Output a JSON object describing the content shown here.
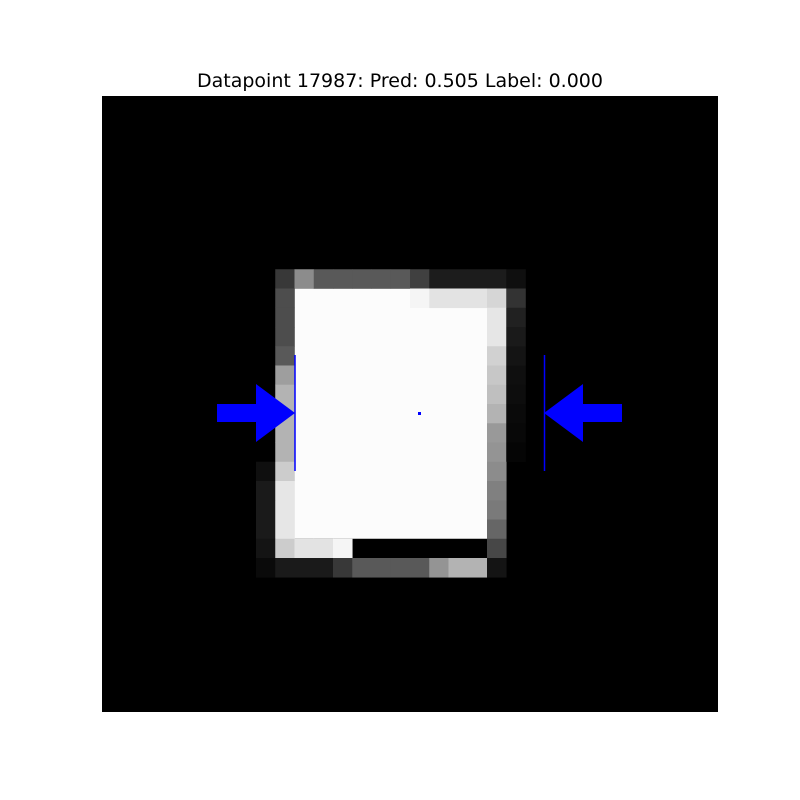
{
  "title": "Datapoint 17987: Pred: 0.505 Label: 0.000",
  "image": {
    "grid_size": 32,
    "background": "#000000",
    "pixels": [
      {
        "col": 9,
        "row": 9,
        "gray": 0.22
      },
      {
        "col": 10,
        "row": 9,
        "gray": 0.55
      },
      {
        "col": 11,
        "row": 9,
        "gray": 0.35
      },
      {
        "col": 12,
        "row": 9,
        "gray": 0.35
      },
      {
        "col": 13,
        "row": 9,
        "gray": 0.35
      },
      {
        "col": 14,
        "row": 9,
        "gray": 0.35
      },
      {
        "col": 15,
        "row": 9,
        "gray": 0.35
      },
      {
        "col": 16,
        "row": 9,
        "gray": 0.25
      },
      {
        "col": 17,
        "row": 9,
        "gray": 0.11
      },
      {
        "col": 18,
        "row": 9,
        "gray": 0.11
      },
      {
        "col": 19,
        "row": 9,
        "gray": 0.11
      },
      {
        "col": 20,
        "row": 9,
        "gray": 0.11
      },
      {
        "col": 21,
        "row": 9,
        "gray": 0.06
      },
      {
        "col": 9,
        "row": 10,
        "gray": 0.3
      },
      {
        "col": 16,
        "row": 10,
        "gray": 0.96
      },
      {
        "col": 17,
        "row": 10,
        "gray": 0.89
      },
      {
        "col": 18,
        "row": 10,
        "gray": 0.89
      },
      {
        "col": 19,
        "row": 10,
        "gray": 0.89
      },
      {
        "col": 20,
        "row": 10,
        "gray": 0.84
      },
      {
        "col": 21,
        "row": 10,
        "gray": 0.2
      },
      {
        "col": 9,
        "row": 11,
        "gray": 0.3
      },
      {
        "col": 20,
        "row": 11,
        "gray": 0.9
      },
      {
        "col": 21,
        "row": 11,
        "gray": 0.13
      },
      {
        "col": 9,
        "row": 12,
        "gray": 0.3
      },
      {
        "col": 20,
        "row": 12,
        "gray": 0.9
      },
      {
        "col": 21,
        "row": 12,
        "gray": 0.1
      },
      {
        "col": 9,
        "row": 13,
        "gray": 0.35
      },
      {
        "col": 20,
        "row": 13,
        "gray": 0.82
      },
      {
        "col": 21,
        "row": 13,
        "gray": 0.08
      },
      {
        "col": 9,
        "row": 14,
        "gray": 0.62
      },
      {
        "col": 20,
        "row": 14,
        "gray": 0.78
      },
      {
        "col": 21,
        "row": 14,
        "gray": 0.06
      },
      {
        "col": 9,
        "row": 15,
        "gray": 0.7
      },
      {
        "col": 20,
        "row": 15,
        "gray": 0.75
      },
      {
        "col": 21,
        "row": 15,
        "gray": 0.05
      },
      {
        "col": 9,
        "row": 16,
        "gray": 0.7
      },
      {
        "col": 20,
        "row": 16,
        "gray": 0.7
      },
      {
        "col": 21,
        "row": 16,
        "gray": 0.04
      },
      {
        "col": 9,
        "row": 17,
        "gray": 0.7
      },
      {
        "col": 20,
        "row": 17,
        "gray": 0.6
      },
      {
        "col": 21,
        "row": 17,
        "gray": 0.03
      },
      {
        "col": 9,
        "row": 18,
        "gray": 0.7
      },
      {
        "col": 20,
        "row": 18,
        "gray": 0.58
      },
      {
        "col": 21,
        "row": 18,
        "gray": 0.02
      },
      {
        "col": 8,
        "row": 19,
        "gray": 0.06
      },
      {
        "col": 9,
        "row": 19,
        "gray": 0.8
      },
      {
        "col": 20,
        "row": 19,
        "gray": 0.55
      },
      {
        "col": 8,
        "row": 20,
        "gray": 0.1
      },
      {
        "col": 9,
        "row": 20,
        "gray": 0.9
      },
      {
        "col": 20,
        "row": 20,
        "gray": 0.5
      },
      {
        "col": 8,
        "row": 21,
        "gray": 0.1
      },
      {
        "col": 9,
        "row": 21,
        "gray": 0.9
      },
      {
        "col": 20,
        "row": 21,
        "gray": 0.48
      },
      {
        "col": 8,
        "row": 22,
        "gray": 0.1
      },
      {
        "col": 9,
        "row": 22,
        "gray": 0.9
      },
      {
        "col": 20,
        "row": 22,
        "gray": 0.4
      },
      {
        "col": 8,
        "row": 23,
        "gray": 0.08
      },
      {
        "col": 9,
        "row": 23,
        "gray": 0.8
      },
      {
        "col": 10,
        "row": 23,
        "gray": 0.89
      },
      {
        "col": 11,
        "row": 23,
        "gray": 0.89
      },
      {
        "col": 12,
        "row": 23,
        "gray": 0.96
      },
      {
        "col": 20,
        "row": 23,
        "gray": 0.28
      },
      {
        "col": 8,
        "row": 24,
        "gray": 0.04
      },
      {
        "col": 9,
        "row": 24,
        "gray": 0.1
      },
      {
        "col": 10,
        "row": 24,
        "gray": 0.1
      },
      {
        "col": 11,
        "row": 24,
        "gray": 0.1
      },
      {
        "col": 12,
        "row": 24,
        "gray": 0.22
      },
      {
        "col": 13,
        "row": 24,
        "gray": 0.35
      },
      {
        "col": 14,
        "row": 24,
        "gray": 0.35
      },
      {
        "col": 15,
        "row": 24,
        "gray": 0.35
      },
      {
        "col": 16,
        "row": 24,
        "gray": 0.35
      },
      {
        "col": 17,
        "row": 24,
        "gray": 0.58
      },
      {
        "col": 18,
        "row": 24,
        "gray": 0.7
      },
      {
        "col": 19,
        "row": 24,
        "gray": 0.7
      },
      {
        "col": 20,
        "row": 24,
        "gray": 0.08
      }
    ],
    "white_region": {
      "col_start": 10,
      "col_end": 19,
      "row_start": 10,
      "row_end": 22,
      "gray": 0.99
    }
  },
  "overlay": {
    "color": "#0000ff",
    "left_arrow": "arrow-right",
    "right_arrow": "arrow-left"
  }
}
